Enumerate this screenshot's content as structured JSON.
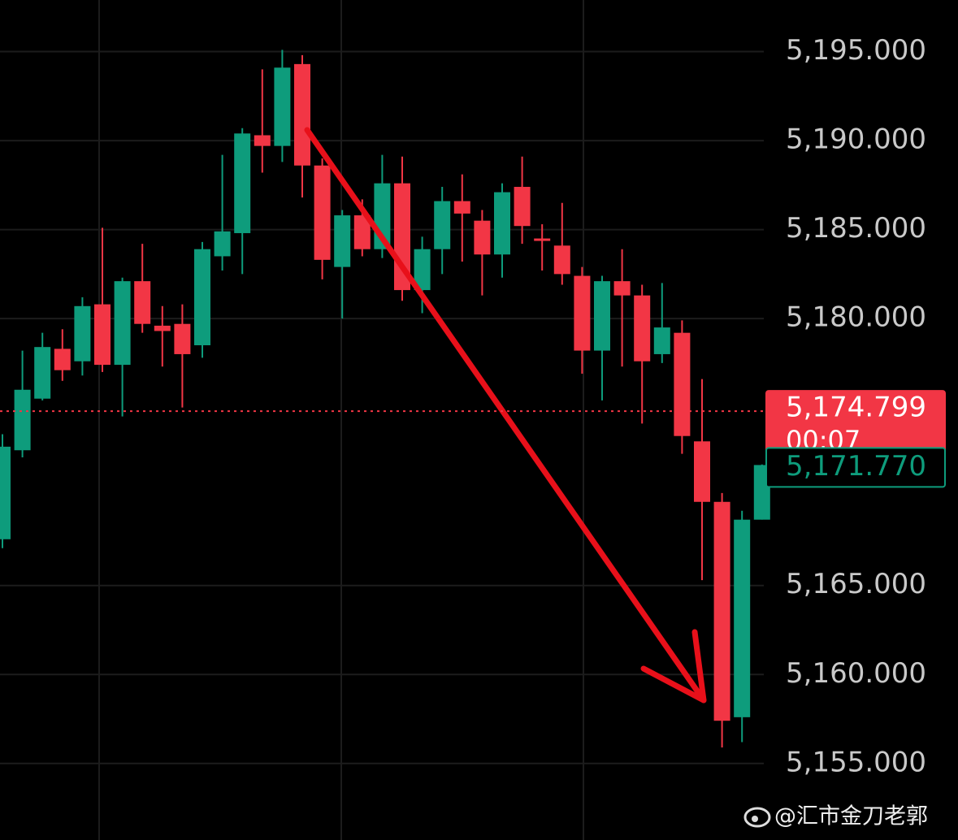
{
  "chart_data": {
    "type": "candlestick",
    "up_color": "#0e9c7c",
    "down_color": "#f23645",
    "grid": true,
    "ylim": [
      5150.7,
      5197.9
    ],
    "yticks": [
      {
        "value": 5155,
        "label": "5,155.000"
      },
      {
        "value": 5160,
        "label": "5,160.000"
      },
      {
        "value": 5165,
        "label": "5,165.000"
      },
      {
        "value": 5180,
        "label": "5,180.000"
      },
      {
        "value": 5185,
        "label": "5,185.000"
      },
      {
        "value": 5190,
        "label": "5,190.000"
      },
      {
        "value": 5195,
        "label": "5,195.000"
      }
    ],
    "open": [
      5167.6,
      5172.6,
      5175.5,
      5178.3,
      5177.6,
      5180.8,
      5177.4,
      5182.1,
      5179.6,
      5179.7,
      5178.5,
      5183.5,
      5184.8,
      5190.3,
      5189.7,
      5194.3,
      5188.6,
      5182.9,
      5185.8,
      5183.9,
      5187.6,
      5181.6,
      5183.9,
      5186.6,
      5185.5,
      5183.6,
      5187.4,
      5184.5,
      5184.1,
      5182.4,
      5178.2,
      5182.1,
      5181.3,
      5178.0,
      5179.2,
      5173.1,
      5169.7,
      5157.6,
      5168.7
    ],
    "high": [
      5173.5,
      5178.2,
      5179.2,
      5179.4,
      5181.2,
      5185.1,
      5182.3,
      5184.2,
      5180.7,
      5180.8,
      5184.3,
      5189.2,
      5190.7,
      5194.0,
      5195.1,
      5194.8,
      5189.0,
      5186.1,
      5186.7,
      5189.2,
      5189.1,
      5184.6,
      5187.4,
      5188.1,
      5186.1,
      5187.6,
      5189.1,
      5185.3,
      5186.5,
      5182.9,
      5182.4,
      5183.9,
      5181.9,
      5182.0,
      5179.9,
      5176.6,
      5170.2,
      5169.2,
      5171.8
    ],
    "low": [
      5167.1,
      5172.2,
      5175.4,
      5176.5,
      5176.8,
      5177.0,
      5174.5,
      5179.2,
      5177.3,
      5175.0,
      5177.8,
      5182.7,
      5182.5,
      5188.2,
      5188.8,
      5186.8,
      5182.2,
      5180.0,
      5183.5,
      5183.4,
      5181.0,
      5180.3,
      5182.5,
      5183.2,
      5181.3,
      5182.3,
      5184.2,
      5182.7,
      5181.9,
      5176.9,
      5175.4,
      5177.3,
      5174.1,
      5177.5,
      5172.4,
      5165.3,
      5155.9,
      5156.2,
      5168.7
    ],
    "close": [
      5172.8,
      5176.0,
      5178.4,
      5177.1,
      5180.7,
      5177.4,
      5182.1,
      5179.7,
      5179.3,
      5178.0,
      5183.9,
      5184.9,
      5190.4,
      5189.7,
      5194.1,
      5188.6,
      5183.3,
      5185.8,
      5183.9,
      5187.6,
      5181.6,
      5183.9,
      5186.6,
      5185.9,
      5183.6,
      5187.1,
      5185.2,
      5184.4,
      5182.5,
      5178.2,
      5182.1,
      5181.3,
      5177.6,
      5179.5,
      5173.4,
      5169.7,
      5157.4,
      5168.7,
      5171.77
    ],
    "price_line": {
      "value": 5174.799,
      "label": "5,174.799",
      "countdown": "00:07"
    },
    "reference_price": {
      "value": 5171.77,
      "label": "5,171.770"
    },
    "watermark": "@汇市金刀老郭"
  }
}
